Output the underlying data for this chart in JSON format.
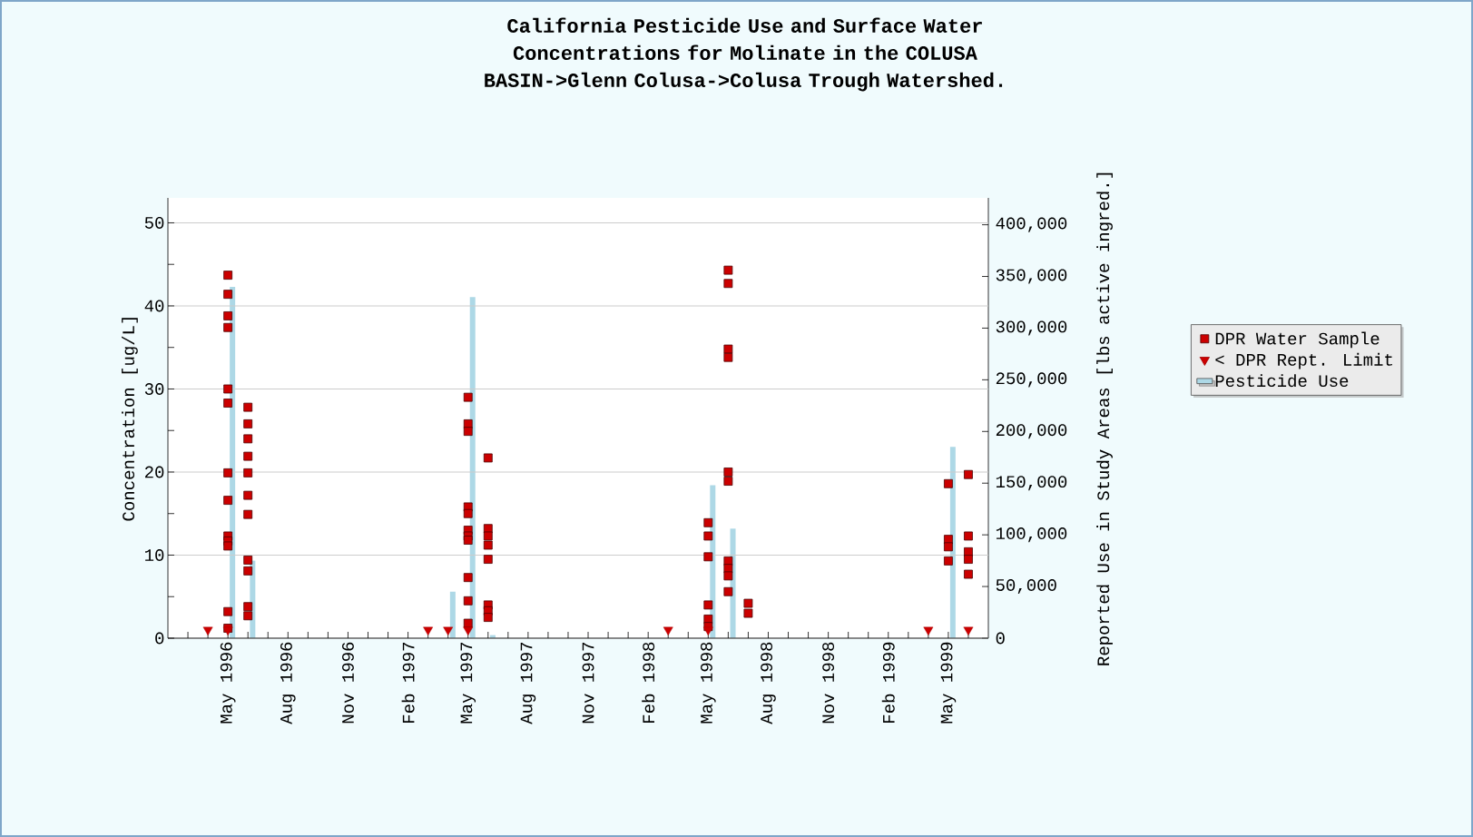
{
  "chart_data": {
    "type": "scatter",
    "title": "California Pesticide Use and Surface Water Concentrations for Molinate in the COLUSA BASIN->Glenn Colusa->Colusa Trough Watershed.",
    "ylabel": "Concentration [ug/L]",
    "y2label": "Reported Use in Study Areas [lbs active ingred.]",
    "xlim": [
      "1996-02",
      "1999-07"
    ],
    "xticks": [
      {
        "value": "1996-03",
        "label": null
      },
      {
        "value": "1996-04",
        "label": null
      },
      {
        "value": "1996-05",
        "label": "May 1996"
      },
      {
        "value": "1996-06",
        "label": null
      },
      {
        "value": "1996-07",
        "label": null
      },
      {
        "value": "1996-08",
        "label": "Aug 1996"
      },
      {
        "value": "1996-09",
        "label": null
      },
      {
        "value": "1996-10",
        "label": null
      },
      {
        "value": "1996-11",
        "label": "Nov 1996"
      },
      {
        "value": "1996-12",
        "label": null
      },
      {
        "value": "1997-01",
        "label": null
      },
      {
        "value": "1997-02",
        "label": "Feb 1997"
      },
      {
        "value": "1997-03",
        "label": null
      },
      {
        "value": "1997-04",
        "label": null
      },
      {
        "value": "1997-05",
        "label": "May 1997"
      },
      {
        "value": "1997-06",
        "label": null
      },
      {
        "value": "1997-07",
        "label": null
      },
      {
        "value": "1997-08",
        "label": "Aug 1997"
      },
      {
        "value": "1997-09",
        "label": null
      },
      {
        "value": "1997-10",
        "label": null
      },
      {
        "value": "1997-11",
        "label": "Nov 1997"
      },
      {
        "value": "1997-12",
        "label": null
      },
      {
        "value": "1998-01",
        "label": null
      },
      {
        "value": "1998-02",
        "label": "Feb 1998"
      },
      {
        "value": "1998-03",
        "label": null
      },
      {
        "value": "1998-04",
        "label": null
      },
      {
        "value": "1998-05",
        "label": "May 1998"
      },
      {
        "value": "1998-06",
        "label": null
      },
      {
        "value": "1998-07",
        "label": null
      },
      {
        "value": "1998-08",
        "label": "Aug 1998"
      },
      {
        "value": "1998-09",
        "label": null
      },
      {
        "value": "1998-10",
        "label": null
      },
      {
        "value": "1998-11",
        "label": "Nov 1998"
      },
      {
        "value": "1998-12",
        "label": null
      },
      {
        "value": "1999-01",
        "label": null
      },
      {
        "value": "1999-02",
        "label": "Feb 1999"
      },
      {
        "value": "1999-03",
        "label": null
      },
      {
        "value": "1999-04",
        "label": null
      },
      {
        "value": "1999-05",
        "label": "May 1999"
      },
      {
        "value": "1999-06",
        "label": null
      }
    ],
    "ylim": [
      0,
      53
    ],
    "yticks": [
      0,
      {
        "value": 5,
        "label": null
      },
      10,
      {
        "value": 15,
        "label": null
      },
      20,
      {
        "value": 25,
        "label": null
      },
      30,
      {
        "value": 35,
        "label": null
      },
      40,
      {
        "value": 45,
        "label": null
      },
      50
    ],
    "y2lim": [
      0,
      426000
    ],
    "y2ticks": [
      0,
      {
        "value": 50000,
        "label": "50,000"
      },
      {
        "value": 100000,
        "label": "100,000"
      },
      {
        "value": 150000,
        "label": "150,000"
      },
      {
        "value": 200000,
        "label": "200,000"
      },
      {
        "value": 250000,
        "label": "250,000"
      },
      {
        "value": 300000,
        "label": "300,000"
      },
      {
        "value": 350000,
        "label": "350,000"
      },
      {
        "value": 400000,
        "label": "400,000"
      }
    ],
    "grid": "y",
    "legend": "right",
    "series": [
      {
        "name": "DPR Water Sample",
        "marker": "square",
        "color": "#cc0000",
        "x": [
          "1996-05",
          "1996-05",
          "1996-05",
          "1996-05",
          "1996-05",
          "1996-05",
          "1996-05",
          "1996-05",
          "1996-05",
          "1996-05",
          "1996-05",
          "1996-05",
          "1996-05",
          "1996-06",
          "1996-06",
          "1996-06",
          "1996-06",
          "1996-06",
          "1996-06",
          "1996-06",
          "1996-06",
          "1996-06",
          "1996-06",
          "1996-06",
          "1997-05",
          "1997-05",
          "1997-05",
          "1997-05",
          "1997-05",
          "1997-05",
          "1997-05",
          "1997-05",
          "1997-05",
          "1997-05",
          "1997-05",
          "1997-06",
          "1997-06",
          "1997-06",
          "1997-06",
          "1997-06",
          "1997-06",
          "1997-06",
          "1997-06",
          "1998-05",
          "1998-05",
          "1998-05",
          "1998-05",
          "1998-05",
          "1998-05",
          "1998-06",
          "1998-06",
          "1998-06",
          "1998-06",
          "1998-06",
          "1998-06",
          "1998-06",
          "1998-06",
          "1998-06",
          "1998-06",
          "1998-07",
          "1998-07",
          "1999-05",
          "1999-05",
          "1999-05",
          "1999-05",
          "1999-06",
          "1999-06",
          "1999-06",
          "1999-06",
          "1999-06"
        ],
        "values": [
          43.7,
          41.4,
          38.8,
          37.4,
          30.0,
          28.3,
          19.9,
          16.6,
          12.3,
          11.7,
          11.1,
          3.2,
          1.2,
          27.8,
          25.8,
          24.0,
          21.9,
          19.9,
          17.2,
          14.9,
          9.4,
          8.1,
          3.8,
          2.7,
          29.0,
          25.8,
          24.9,
          15.8,
          15.0,
          13.0,
          12.3,
          11.8,
          7.3,
          4.5,
          1.8,
          21.7,
          13.2,
          12.3,
          11.2,
          9.5,
          4.0,
          3.3,
          2.5,
          13.9,
          12.3,
          9.8,
          4.0,
          2.3,
          1.4,
          44.3,
          42.7,
          34.8,
          33.8,
          20.0,
          18.9,
          9.3,
          8.4,
          7.5,
          5.6,
          4.2,
          3.0,
          18.6,
          11.9,
          11.0,
          9.3,
          19.7,
          12.3,
          10.4,
          9.5,
          7.7
        ]
      },
      {
        "name": "< DPR Rept. Limit",
        "marker": "triangle",
        "color": "#cc0000",
        "x": [
          "1996-04",
          "1996-05",
          "1997-03",
          "1997-04",
          "1997-05",
          "1998-03",
          "1998-05",
          "1999-04",
          "1999-06"
        ],
        "values": [
          1,
          1,
          1,
          1,
          1,
          1,
          1,
          1,
          1
        ]
      },
      {
        "name": "Pesticide Use",
        "type": "bar",
        "axis": "y2",
        "color": "#add8e6",
        "x": [
          "1996-05-08",
          "1996-06-08",
          "1997-04-08",
          "1997-05-08",
          "1997-06-08",
          "1998-05-08",
          "1998-06-08",
          "1999-05-08"
        ],
        "values": [
          340000,
          75000,
          45000,
          330000,
          3000,
          148000,
          106000,
          185000
        ]
      }
    ]
  }
}
